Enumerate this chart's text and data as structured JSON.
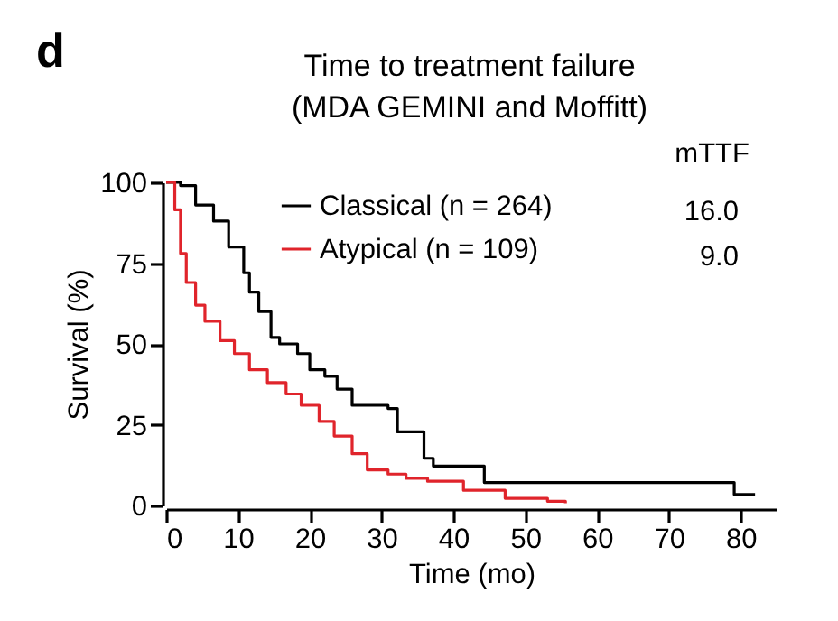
{
  "chart_data": {
    "type": "step",
    "title": "Time to treatment failure",
    "subtitle": "(MDA GEMINI and Moffitt)",
    "xlabel": "Time (mo)",
    "ylabel": "Survival (%)",
    "xlim": [
      0,
      85
    ],
    "xticks": [
      0,
      10,
      20,
      30,
      40,
      50,
      60,
      70,
      80
    ],
    "ylim": [
      0,
      100
    ],
    "yticks": [
      0,
      25,
      50,
      75,
      100
    ],
    "grid": false,
    "legend": "top",
    "marker": "none",
    "line_style": "solid",
    "annotations": [
      "d",
      "mTTF",
      "16.0",
      "9.0"
    ],
    "series": [
      {
        "name": "Classical (n = 264)",
        "color": "#000000",
        "x": [
          0,
          2,
          4.1,
          6.6,
          8.7,
          10.8,
          11.6,
          12.9,
          14.6,
          15.8,
          18.3,
          20,
          22.1,
          23.8,
          25.9,
          30.9,
          32.2,
          35.9,
          37.2,
          44.3,
          79.1,
          82
        ],
        "values": [
          100,
          99,
          93,
          88,
          80,
          72,
          66,
          60,
          52,
          50,
          47,
          42,
          40,
          36,
          31,
          30,
          22.8,
          14.6,
          12.2,
          7.1,
          3.4,
          3.4
        ]
      },
      {
        "name": "Atypical (n = 109)",
        "color": "#e0242b",
        "x": [
          0,
          0.8,
          1.2,
          2,
          2.8,
          4.1,
          5.4,
          7.5,
          9.5,
          11.6,
          14.1,
          16.7,
          18.8,
          21.3,
          23.4,
          25.9,
          28,
          30.9,
          33.4,
          36.4,
          41.4,
          47.2,
          53.1,
          55.6
        ],
        "values": [
          100,
          100,
          91.5,
          78,
          69,
          62,
          57,
          51,
          47,
          42,
          38,
          34.5,
          31,
          26,
          21.5,
          16,
          11,
          9.7,
          8.4,
          7.5,
          4.7,
          2.2,
          1.3,
          0.7
        ]
      }
    ]
  }
}
